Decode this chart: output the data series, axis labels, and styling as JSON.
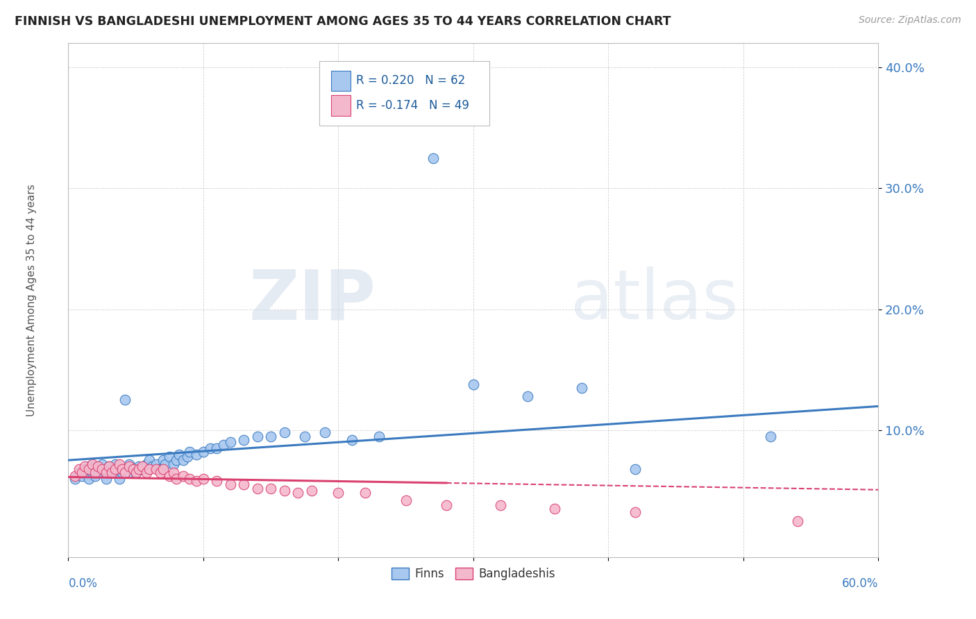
{
  "title": "FINNISH VS BANGLADESHI UNEMPLOYMENT AMONG AGES 35 TO 44 YEARS CORRELATION CHART",
  "source": "Source: ZipAtlas.com",
  "ylabel": "Unemployment Among Ages 35 to 44 years",
  "legend_finns": "Finns",
  "legend_bangladeshis": "Bangladeshis",
  "R_finns": 0.22,
  "N_finns": 62,
  "R_bangladeshis": -0.174,
  "N_bangladeshis": 49,
  "xlim": [
    0.0,
    0.6
  ],
  "ylim": [
    -0.005,
    0.42
  ],
  "yticks": [
    0.1,
    0.2,
    0.3,
    0.4
  ],
  "ytick_labels": [
    "10.0%",
    "20.0%",
    "30.0%",
    "40.0%"
  ],
  "color_finns": "#a8c8f0",
  "color_bangladeshis": "#f4b8cc",
  "color_line_finns": "#3a7abf",
  "color_line_bangladeshis": "#d94070",
  "watermark_zip": "ZIP",
  "watermark_atlas": "atlas",
  "finns_x": [
    0.005,
    0.008,
    0.01,
    0.012,
    0.015,
    0.015,
    0.018,
    0.02,
    0.02,
    0.022,
    0.025,
    0.025,
    0.028,
    0.03,
    0.03,
    0.032,
    0.035,
    0.035,
    0.038,
    0.04,
    0.04,
    0.042,
    0.045,
    0.045,
    0.048,
    0.05,
    0.052,
    0.055,
    0.058,
    0.06,
    0.062,
    0.065,
    0.068,
    0.07,
    0.072,
    0.075,
    0.078,
    0.08,
    0.082,
    0.085,
    0.088,
    0.09,
    0.095,
    0.1,
    0.105,
    0.11,
    0.115,
    0.12,
    0.13,
    0.14,
    0.15,
    0.16,
    0.175,
    0.19,
    0.21,
    0.23,
    0.27,
    0.3,
    0.34,
    0.38,
    0.42,
    0.52
  ],
  "finns_y": [
    0.06,
    0.065,
    0.062,
    0.068,
    0.06,
    0.07,
    0.065,
    0.062,
    0.07,
    0.065,
    0.068,
    0.072,
    0.06,
    0.065,
    0.07,
    0.068,
    0.065,
    0.072,
    0.06,
    0.065,
    0.068,
    0.125,
    0.065,
    0.072,
    0.068,
    0.065,
    0.07,
    0.068,
    0.072,
    0.075,
    0.07,
    0.072,
    0.068,
    0.075,
    0.072,
    0.078,
    0.072,
    0.075,
    0.08,
    0.075,
    0.078,
    0.082,
    0.08,
    0.082,
    0.085,
    0.085,
    0.088,
    0.09,
    0.092,
    0.095,
    0.095,
    0.098,
    0.095,
    0.098,
    0.092,
    0.095,
    0.325,
    0.138,
    0.128,
    0.135,
    0.068,
    0.095
  ],
  "bangladeshis_x": [
    0.005,
    0.008,
    0.01,
    0.012,
    0.015,
    0.018,
    0.02,
    0.022,
    0.025,
    0.028,
    0.03,
    0.032,
    0.035,
    0.038,
    0.04,
    0.042,
    0.045,
    0.048,
    0.05,
    0.052,
    0.055,
    0.058,
    0.06,
    0.065,
    0.068,
    0.07,
    0.075,
    0.078,
    0.08,
    0.085,
    0.09,
    0.095,
    0.1,
    0.11,
    0.12,
    0.13,
    0.14,
    0.15,
    0.16,
    0.17,
    0.18,
    0.2,
    0.22,
    0.25,
    0.28,
    0.32,
    0.36,
    0.42,
    0.54
  ],
  "bangladeshis_y": [
    0.062,
    0.068,
    0.065,
    0.07,
    0.068,
    0.072,
    0.065,
    0.07,
    0.068,
    0.065,
    0.07,
    0.065,
    0.068,
    0.072,
    0.068,
    0.065,
    0.07,
    0.068,
    0.065,
    0.068,
    0.07,
    0.065,
    0.068,
    0.068,
    0.065,
    0.068,
    0.062,
    0.065,
    0.06,
    0.062,
    0.06,
    0.058,
    0.06,
    0.058,
    0.055,
    0.055,
    0.052,
    0.052,
    0.05,
    0.048,
    0.05,
    0.048,
    0.048,
    0.042,
    0.038,
    0.038,
    0.035,
    0.032,
    0.025
  ]
}
